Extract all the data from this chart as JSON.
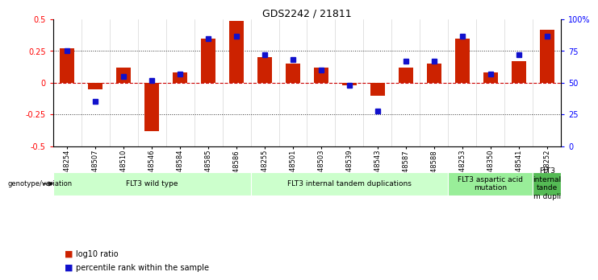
{
  "title": "GDS2242 / 21811",
  "samples": [
    "GSM48254",
    "GSM48507",
    "GSM48510",
    "GSM48546",
    "GSM48584",
    "GSM48585",
    "GSM48586",
    "GSM48255",
    "GSM48501",
    "GSM48503",
    "GSM48539",
    "GSM48543",
    "GSM48587",
    "GSM48588",
    "GSM48253",
    "GSM48350",
    "GSM48541",
    "GSM48252"
  ],
  "log10_ratio": [
    0.27,
    -0.05,
    0.12,
    -0.38,
    0.08,
    0.35,
    0.49,
    0.2,
    0.15,
    0.12,
    -0.02,
    -0.1,
    0.12,
    0.15,
    0.35,
    0.08,
    0.17,
    0.42
  ],
  "percentile_rank": [
    75,
    35,
    55,
    52,
    57,
    85,
    87,
    72,
    68,
    60,
    48,
    28,
    67,
    67,
    87,
    57,
    72,
    87
  ],
  "groups": [
    {
      "label": "FLT3 wild type",
      "start": 0,
      "end": 6,
      "color": "#ccffcc"
    },
    {
      "label": "FLT3 internal tandem duplications",
      "start": 7,
      "end": 13,
      "color": "#ccffcc"
    },
    {
      "label": "FLT3 aspartic acid\nmutation",
      "start": 14,
      "end": 16,
      "color": "#99ee99"
    },
    {
      "label": "FLT3\ninternal\ntande\nm dupli",
      "start": 17,
      "end": 17,
      "color": "#55bb55"
    }
  ],
  "ylim_left": [
    -0.5,
    0.5
  ],
  "ylim_right": [
    0,
    100
  ],
  "yticks_left": [
    -0.5,
    -0.25,
    0,
    0.25,
    0.5
  ],
  "yticks_right": [
    0,
    25,
    50,
    75,
    100
  ],
  "ytick_labels_right": [
    "0",
    "25",
    "50",
    "75",
    "100%"
  ],
  "bar_color": "#cc2200",
  "rank_color": "#1111cc",
  "hline_color": "#cc0000",
  "dotted_color": "#333333",
  "legend_label_bar": "log10 ratio",
  "legend_label_rank": "percentile rank within the sample",
  "genotype_label": "genotype/variation"
}
